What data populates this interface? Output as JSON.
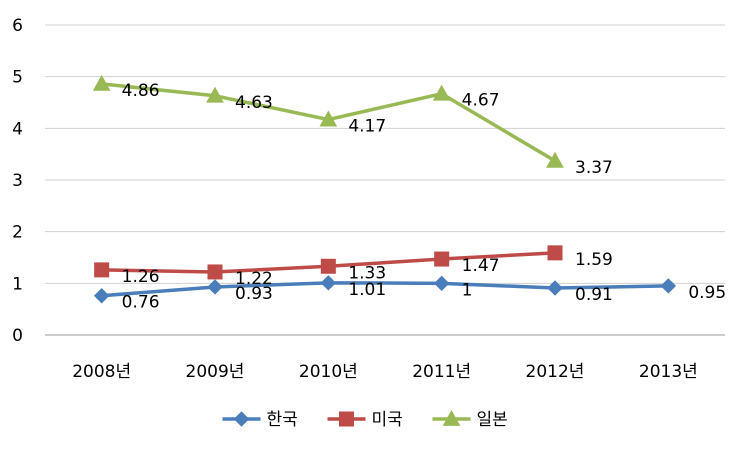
{
  "chart_data": {
    "type": "line",
    "categories": [
      "2008년",
      "2009년",
      "2010년",
      "2011년",
      "2012년",
      "2013년"
    ],
    "y_ticks": [
      "0",
      "1",
      "2",
      "3",
      "4",
      "5",
      "6"
    ],
    "ylim": [
      0,
      6
    ],
    "grid": "horizontal",
    "legend_position": "bottom",
    "series": [
      {
        "name": "한국",
        "color": "#4a7ebb",
        "marker": "diamond",
        "values": [
          0.76,
          0.93,
          1.01,
          1,
          0.91,
          0.95
        ],
        "labels": [
          "0.76",
          "0.93",
          "1.01",
          "1",
          "0.91",
          "0.95"
        ]
      },
      {
        "name": "미국",
        "color": "#be4b48",
        "marker": "square",
        "values": [
          1.26,
          1.22,
          1.33,
          1.47,
          1.59,
          null
        ],
        "labels": [
          "1.26",
          "1.22",
          "1.33",
          "1.47",
          "1.59",
          null
        ]
      },
      {
        "name": "일본",
        "color": "#98b954",
        "marker": "triangle",
        "values": [
          4.86,
          4.63,
          4.17,
          4.67,
          3.37,
          null
        ],
        "labels": [
          "4.86",
          "4.63",
          "4.17",
          "4.67",
          "3.37",
          null
        ]
      }
    ]
  }
}
